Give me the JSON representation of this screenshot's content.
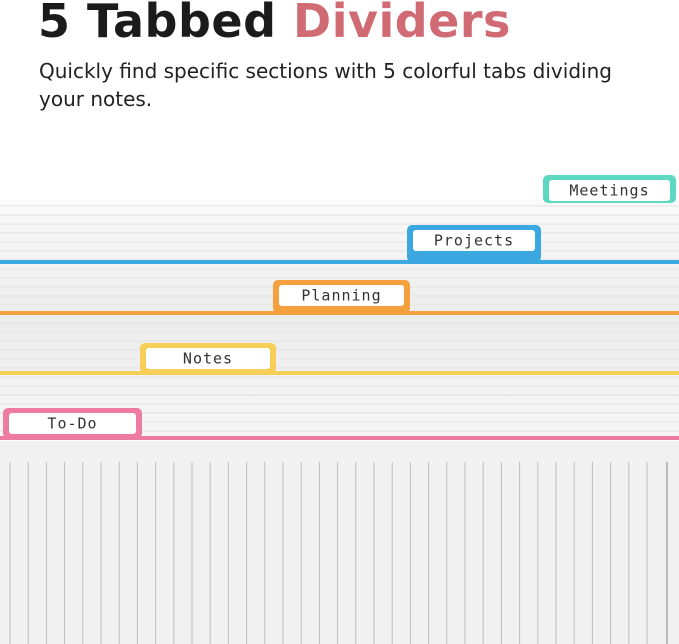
{
  "header": {
    "title_lead": "5 Tabbed",
    "title_accent": "Dividers",
    "subtitle": "Quickly find specific sections with 5  colorful tabs dividing your notes."
  },
  "tabs": [
    {
      "label": "Meetings"
    },
    {
      "label": "Projects"
    },
    {
      "label": "Planning"
    },
    {
      "label": "Notes"
    },
    {
      "label": "To-Do"
    }
  ]
}
